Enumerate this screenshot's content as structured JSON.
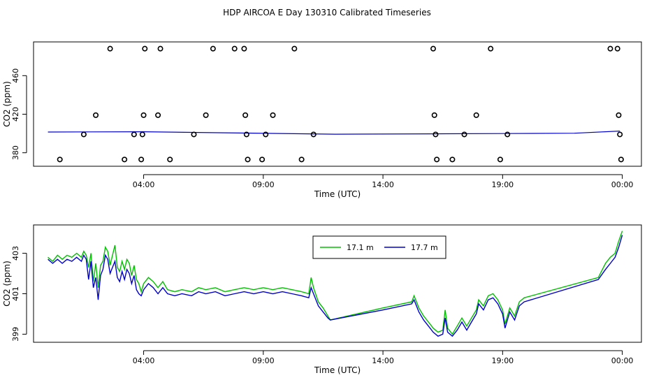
{
  "title": "HDP AIRCOA E  Day 130310  Calibrated Timeseries",
  "colors": {
    "green": "#00c000",
    "blue": "#0000cc",
    "black": "#000000"
  },
  "chart_data": [
    {
      "type": "scatter",
      "xlabel": "Time (UTC)",
      "ylabel": "CO2 (ppm)",
      "x_ticks": [
        {
          "value": 4,
          "label": "04:00"
        },
        {
          "value": 9,
          "label": "09:00"
        },
        {
          "value": 14,
          "label": "14:00"
        },
        {
          "value": 19,
          "label": "19:00"
        },
        {
          "value": 24,
          "label": "00:00"
        }
      ],
      "y_ticks": [
        {
          "value": 380,
          "label": "380"
        },
        {
          "value": 420,
          "label": "420"
        },
        {
          "value": 460,
          "label": "460"
        }
      ],
      "xlim": [
        -0.6,
        24.8
      ],
      "ylim": [
        366,
        495
      ],
      "points": [
        [
          0.5,
          373
        ],
        [
          1.5,
          399
        ],
        [
          2.0,
          419
        ],
        [
          2.6,
          488
        ],
        [
          3.2,
          373
        ],
        [
          3.6,
          399
        ],
        [
          3.9,
          373
        ],
        [
          3.95,
          399
        ],
        [
          4.0,
          419
        ],
        [
          4.05,
          488
        ],
        [
          4.6,
          419
        ],
        [
          4.7,
          488
        ],
        [
          5.1,
          373
        ],
        [
          6.1,
          399
        ],
        [
          6.6,
          419
        ],
        [
          6.9,
          488
        ],
        [
          7.8,
          488
        ],
        [
          8.2,
          488
        ],
        [
          8.25,
          419
        ],
        [
          8.3,
          399
        ],
        [
          8.35,
          373
        ],
        [
          8.95,
          373
        ],
        [
          9.1,
          399
        ],
        [
          9.4,
          419
        ],
        [
          10.3,
          488
        ],
        [
          10.6,
          373
        ],
        [
          11.1,
          399
        ],
        [
          16.1,
          488
        ],
        [
          16.15,
          419
        ],
        [
          16.2,
          399
        ],
        [
          16.25,
          373
        ],
        [
          16.9,
          373
        ],
        [
          17.4,
          399
        ],
        [
          17.9,
          419
        ],
        [
          18.5,
          488
        ],
        [
          18.9,
          373
        ],
        [
          19.2,
          399
        ],
        [
          23.5,
          488
        ],
        [
          23.8,
          488
        ],
        [
          23.85,
          419
        ],
        [
          23.9,
          399
        ],
        [
          23.95,
          373
        ]
      ],
      "series": [
        {
          "values": [
            [
              0,
              401.5
            ],
            [
              4,
              401.8
            ],
            [
              8,
              400.5
            ],
            [
              12,
              399.3
            ],
            [
              16,
              399.6
            ],
            [
              19,
              399.9
            ],
            [
              22,
              400.3
            ],
            [
              23.9,
              402.5
            ]
          ]
        }
      ]
    },
    {
      "type": "line",
      "xlabel": "Time (UTC)",
      "ylabel": "CO2 (ppm)",
      "x_ticks": [
        {
          "value": 4,
          "label": "04:00"
        },
        {
          "value": 9,
          "label": "09:00"
        },
        {
          "value": 14,
          "label": "14:00"
        },
        {
          "value": 19,
          "label": "19:00"
        },
        {
          "value": 24,
          "label": "00:00"
        }
      ],
      "y_ticks": [
        {
          "value": 399,
          "label": "399"
        },
        {
          "value": 401,
          "label": "401"
        },
        {
          "value": 403,
          "label": "403"
        }
      ],
      "xlim": [
        -0.6,
        24.8
      ],
      "ylim": [
        398.6,
        404.4
      ],
      "legend_position": "top-right",
      "series": [
        {
          "name": "17.1 m",
          "color": "#00c000",
          "values": [
            [
              0.0,
              402.8
            ],
            [
              0.2,
              402.6
            ],
            [
              0.4,
              402.9
            ],
            [
              0.6,
              402.7
            ],
            [
              0.8,
              402.9
            ],
            [
              1.0,
              402.8
            ],
            [
              1.2,
              403.0
            ],
            [
              1.4,
              402.8
            ],
            [
              1.5,
              403.1
            ],
            [
              1.6,
              402.9
            ],
            [
              1.7,
              402.3
            ],
            [
              1.8,
              403.0
            ],
            [
              1.9,
              401.6
            ],
            [
              2.0,
              402.5
            ],
            [
              2.1,
              401.3
            ],
            [
              2.2,
              402.4
            ],
            [
              2.3,
              402.6
            ],
            [
              2.4,
              403.3
            ],
            [
              2.5,
              403.1
            ],
            [
              2.6,
              402.4
            ],
            [
              2.7,
              402.9
            ],
            [
              2.8,
              403.4
            ],
            [
              2.9,
              402.3
            ],
            [
              3.0,
              402.1
            ],
            [
              3.1,
              402.6
            ],
            [
              3.2,
              402.2
            ],
            [
              3.3,
              402.7
            ],
            [
              3.4,
              402.5
            ],
            [
              3.5,
              401.9
            ],
            [
              3.6,
              402.4
            ],
            [
              3.7,
              401.7
            ],
            [
              3.8,
              401.5
            ],
            [
              3.9,
              401.1
            ],
            [
              4.0,
              401.5
            ],
            [
              4.2,
              401.8
            ],
            [
              4.4,
              401.6
            ],
            [
              4.6,
              401.3
            ],
            [
              4.8,
              401.6
            ],
            [
              5.0,
              401.2
            ],
            [
              5.3,
              401.1
            ],
            [
              5.6,
              401.2
            ],
            [
              6.0,
              401.1
            ],
            [
              6.3,
              401.3
            ],
            [
              6.6,
              401.2
            ],
            [
              7.0,
              401.3
            ],
            [
              7.4,
              401.1
            ],
            [
              7.8,
              401.2
            ],
            [
              8.2,
              401.3
            ],
            [
              8.6,
              401.2
            ],
            [
              9.0,
              401.3
            ],
            [
              9.4,
              401.2
            ],
            [
              9.8,
              401.3
            ],
            [
              10.2,
              401.2
            ],
            [
              10.6,
              401.1
            ],
            [
              10.9,
              401.0
            ],
            [
              11.0,
              401.8
            ],
            [
              11.1,
              401.3
            ],
            [
              11.3,
              400.6
            ],
            [
              11.5,
              400.3
            ],
            [
              11.7,
              399.9
            ],
            [
              11.8,
              399.7
            ],
            [
              14.0,
              400.3
            ],
            [
              15.2,
              400.6
            ],
            [
              15.3,
              400.9
            ],
            [
              15.5,
              400.3
            ],
            [
              15.7,
              399.9
            ],
            [
              15.9,
              399.6
            ],
            [
              16.1,
              399.3
            ],
            [
              16.3,
              399.1
            ],
            [
              16.5,
              399.2
            ],
            [
              16.6,
              400.2
            ],
            [
              16.7,
              399.3
            ],
            [
              16.9,
              399.0
            ],
            [
              17.1,
              399.4
            ],
            [
              17.3,
              399.8
            ],
            [
              17.5,
              399.4
            ],
            [
              17.7,
              399.8
            ],
            [
              17.9,
              400.2
            ],
            [
              18.0,
              400.7
            ],
            [
              18.2,
              400.4
            ],
            [
              18.4,
              400.9
            ],
            [
              18.6,
              401.0
            ],
            [
              18.8,
              400.7
            ],
            [
              19.0,
              400.2
            ],
            [
              19.1,
              399.5
            ],
            [
              19.3,
              400.3
            ],
            [
              19.5,
              399.9
            ],
            [
              19.7,
              400.6
            ],
            [
              19.9,
              400.8
            ],
            [
              23.0,
              401.8
            ],
            [
              23.3,
              402.5
            ],
            [
              23.5,
              402.8
            ],
            [
              23.7,
              403.0
            ],
            [
              23.85,
              403.6
            ],
            [
              24.0,
              404.1
            ]
          ]
        },
        {
          "name": "17.7 m",
          "color": "#0000cc",
          "values": [
            [
              0.0,
              402.7
            ],
            [
              0.2,
              402.5
            ],
            [
              0.4,
              402.7
            ],
            [
              0.6,
              402.5
            ],
            [
              0.8,
              402.7
            ],
            [
              1.0,
              402.6
            ],
            [
              1.2,
              402.8
            ],
            [
              1.4,
              402.6
            ],
            [
              1.5,
              402.9
            ],
            [
              1.6,
              402.7
            ],
            [
              1.7,
              401.7
            ],
            [
              1.8,
              402.6
            ],
            [
              1.9,
              401.3
            ],
            [
              2.0,
              401.8
            ],
            [
              2.1,
              400.7
            ],
            [
              2.2,
              401.9
            ],
            [
              2.3,
              402.2
            ],
            [
              2.4,
              402.9
            ],
            [
              2.5,
              402.7
            ],
            [
              2.6,
              402.0
            ],
            [
              2.7,
              402.3
            ],
            [
              2.8,
              402.6
            ],
            [
              2.9,
              401.8
            ],
            [
              3.0,
              401.6
            ],
            [
              3.1,
              402.1
            ],
            [
              3.2,
              401.7
            ],
            [
              3.3,
              402.2
            ],
            [
              3.4,
              402.0
            ],
            [
              3.5,
              401.5
            ],
            [
              3.6,
              401.9
            ],
            [
              3.7,
              401.2
            ],
            [
              3.8,
              401.0
            ],
            [
              3.9,
              400.9
            ],
            [
              4.0,
              401.2
            ],
            [
              4.2,
              401.5
            ],
            [
              4.4,
              401.3
            ],
            [
              4.6,
              401.0
            ],
            [
              4.8,
              401.3
            ],
            [
              5.0,
              401.0
            ],
            [
              5.3,
              400.9
            ],
            [
              5.6,
              401.0
            ],
            [
              6.0,
              400.9
            ],
            [
              6.3,
              401.1
            ],
            [
              6.6,
              401.0
            ],
            [
              7.0,
              401.1
            ],
            [
              7.4,
              400.9
            ],
            [
              7.8,
              401.0
            ],
            [
              8.2,
              401.1
            ],
            [
              8.6,
              401.0
            ],
            [
              9.0,
              401.1
            ],
            [
              9.4,
              401.0
            ],
            [
              9.8,
              401.1
            ],
            [
              10.2,
              401.0
            ],
            [
              10.6,
              400.9
            ],
            [
              10.9,
              400.8
            ],
            [
              11.0,
              401.3
            ],
            [
              11.1,
              401.0
            ],
            [
              11.3,
              400.4
            ],
            [
              11.5,
              400.1
            ],
            [
              11.7,
              399.8
            ],
            [
              11.8,
              399.7
            ],
            [
              14.0,
              400.2
            ],
            [
              15.2,
              400.5
            ],
            [
              15.3,
              400.7
            ],
            [
              15.5,
              400.1
            ],
            [
              15.7,
              399.7
            ],
            [
              15.9,
              399.4
            ],
            [
              16.1,
              399.1
            ],
            [
              16.3,
              398.9
            ],
            [
              16.5,
              399.0
            ],
            [
              16.6,
              399.8
            ],
            [
              16.7,
              399.1
            ],
            [
              16.9,
              398.9
            ],
            [
              17.1,
              399.2
            ],
            [
              17.3,
              399.6
            ],
            [
              17.5,
              399.2
            ],
            [
              17.7,
              399.6
            ],
            [
              17.9,
              400.0
            ],
            [
              18.0,
              400.5
            ],
            [
              18.2,
              400.2
            ],
            [
              18.4,
              400.7
            ],
            [
              18.6,
              400.8
            ],
            [
              18.8,
              400.5
            ],
            [
              19.0,
              400.0
            ],
            [
              19.1,
              399.3
            ],
            [
              19.3,
              400.1
            ],
            [
              19.5,
              399.7
            ],
            [
              19.7,
              400.4
            ],
            [
              19.9,
              400.6
            ],
            [
              23.0,
              401.7
            ],
            [
              23.3,
              402.2
            ],
            [
              23.5,
              402.5
            ],
            [
              23.7,
              402.8
            ],
            [
              23.85,
              403.3
            ],
            [
              24.0,
              403.9
            ]
          ]
        }
      ]
    }
  ]
}
